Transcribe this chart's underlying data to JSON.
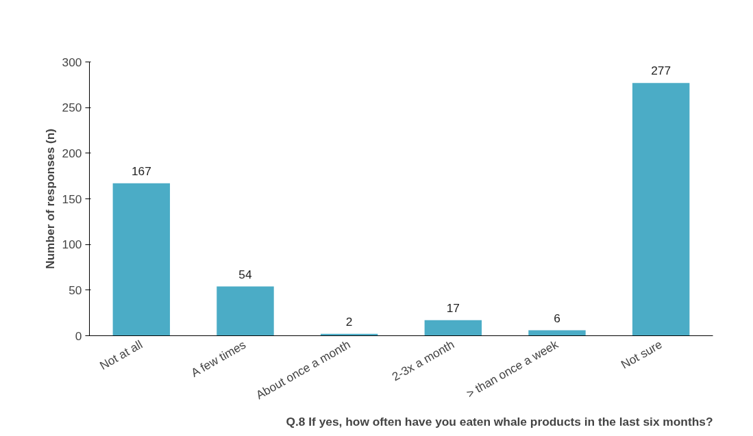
{
  "chart_data": {
    "type": "bar",
    "xlabel": "Q.8 If yes, how often have you eaten whale products in the last six months?",
    "ylabel": "Number of responses (n)",
    "categories": [
      "Not at all",
      "A few times",
      "About once a month",
      "2-3x a month",
      "> than once a week",
      "Not sure"
    ],
    "values": [
      167,
      54,
      2,
      17,
      6,
      277
    ],
    "color": "#4bacc6",
    "ylim": [
      0,
      300
    ],
    "yticks": [
      0,
      50,
      100,
      150,
      200,
      250,
      300
    ],
    "data_labels": true,
    "grid": false
  }
}
